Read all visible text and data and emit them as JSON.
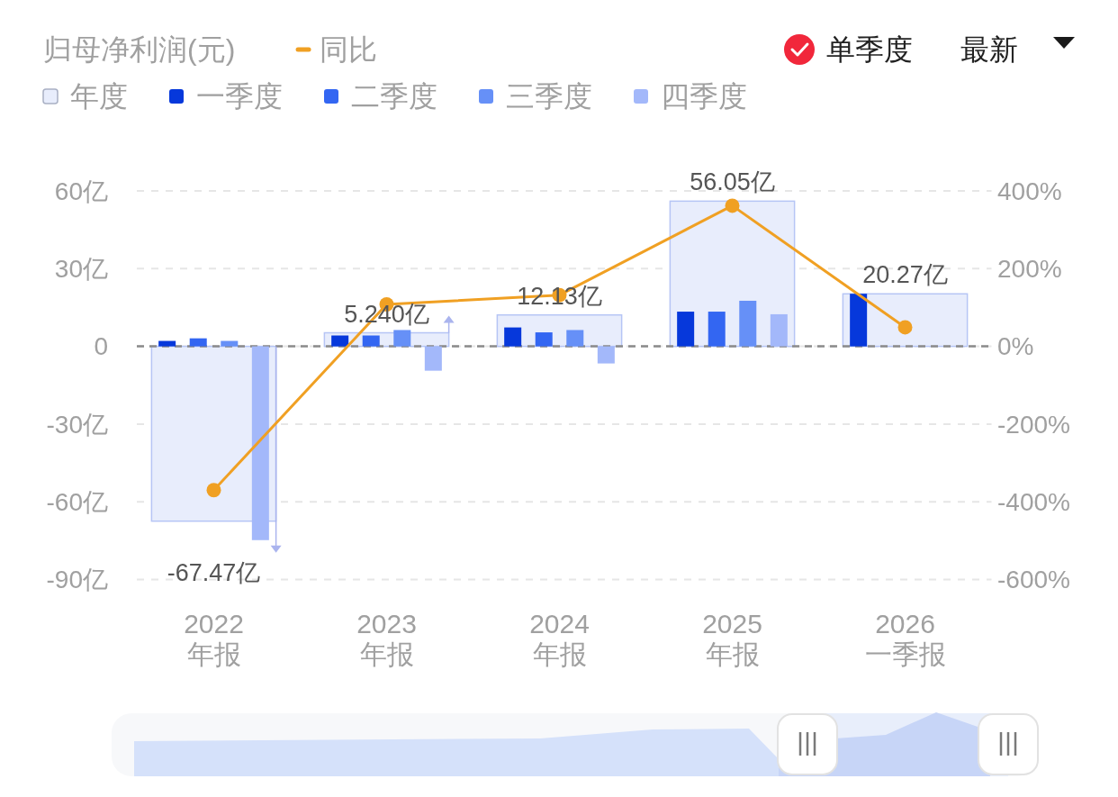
{
  "chart_data": {
    "type": "bar",
    "title": "归母净利润(元)",
    "categories": [
      "2022\n年报",
      "2023\n年报",
      "2024\n年报",
      "2025\n年报",
      "2026\n一季报"
    ],
    "series": [
      {
        "name": "年度",
        "color": "#e8edfc",
        "values": [
          -67.47,
          5.24,
          12.13,
          56.05,
          20.27
        ],
        "value_labels": [
          "-67.47亿",
          "5.240亿",
          "12.13亿",
          "56.05亿",
          "20.27亿"
        ]
      },
      {
        "name": "一季度",
        "color": "#0638db",
        "values": [
          2.1,
          4.2,
          7.3,
          13.4,
          20.3
        ]
      },
      {
        "name": "二季度",
        "color": "#3366f2",
        "values": [
          3.1,
          4.2,
          5.4,
          13.4,
          null
        ]
      },
      {
        "name": "三季度",
        "color": "#6690f7",
        "values": [
          2.1,
          6.3,
          6.3,
          17.6,
          null
        ]
      },
      {
        "name": "四季度",
        "color": "#a3b8fa",
        "values": [
          -74.8,
          -9.4,
          -6.6,
          12.4,
          null
        ]
      },
      {
        "name": "同比",
        "type": "line",
        "axis": "y2",
        "color": "#f0a023",
        "values": [
          -370,
          108,
          132,
          362,
          49
        ]
      }
    ],
    "ylim": [
      -90,
      60
    ],
    "yticks": [
      {
        "value": 60,
        "label": "60亿"
      },
      {
        "value": 30,
        "label": "30亿"
      },
      0,
      {
        "value": -30,
        "label": "-30亿"
      },
      {
        "value": -60,
        "label": "-60亿"
      },
      {
        "value": -90,
        "label": "-90亿"
      }
    ],
    "y2lim": [
      -600,
      400
    ],
    "y2ticks": [
      {
        "value": 400,
        "label": "400%"
      },
      {
        "value": 200,
        "label": "200%"
      },
      {
        "value": 0,
        "label": "0%"
      },
      {
        "value": -200,
        "label": "-200%"
      },
      {
        "value": -400,
        "label": "-400%"
      },
      {
        "value": -600,
        "label": "-600%"
      }
    ],
    "ref_lines": [
      {
        "axis": "y",
        "value": 0,
        "color": "#8a8a8a",
        "line_style": "dashed"
      }
    ],
    "grid": "y",
    "legend": "top left",
    "marker": "circle",
    "annotations": [
      "单季度",
      "最新"
    ]
  }
}
